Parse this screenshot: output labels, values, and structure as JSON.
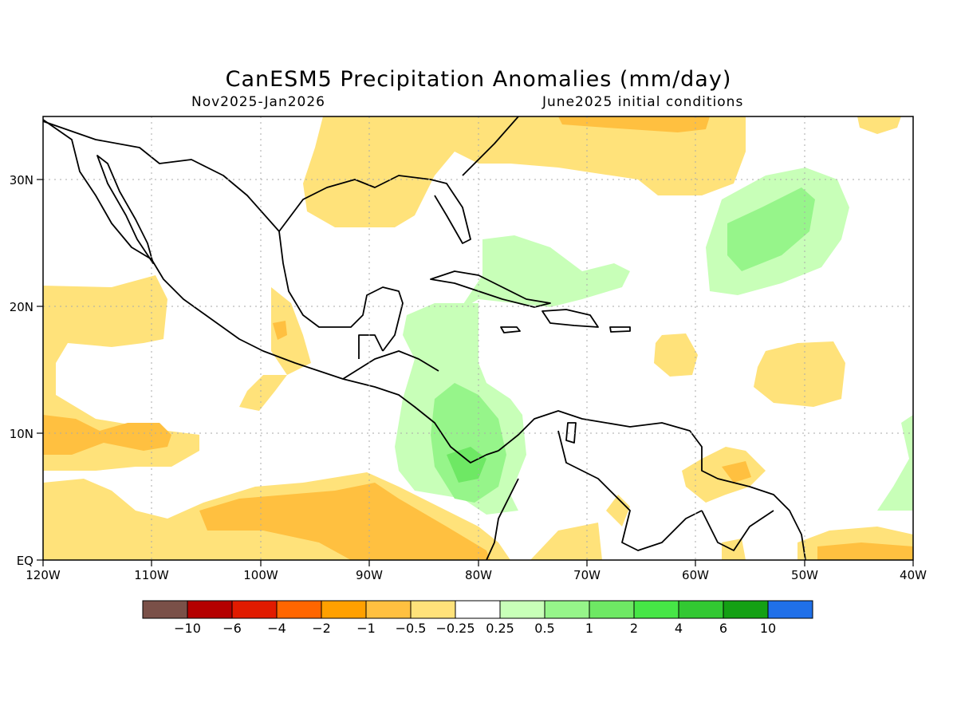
{
  "header": {
    "title": "CanESM5 Precipitation Anomalies (mm/day)",
    "period": "Nov2025-Jan2026",
    "init": "June2025 initial conditions"
  },
  "axes": {
    "x_ticks": [
      "120W",
      "110W",
      "100W",
      "90W",
      "80W",
      "70W",
      "60W",
      "50W",
      "40W"
    ],
    "y_ticks": [
      "EQ",
      "10N",
      "20N",
      "30N"
    ]
  },
  "colorbar": {
    "colors": [
      "#7a5048",
      "#b40000",
      "#e11b00",
      "#ff6600",
      "#ffa000",
      "#ffc040",
      "#ffe27a",
      "#ffffff",
      "#c8ffb8",
      "#96f58a",
      "#6ee864",
      "#46e646",
      "#32c832",
      "#14a014",
      "#2070e8"
    ],
    "labels": [
      "−10",
      "−6",
      "−4",
      "−2",
      "−1",
      "−0.5",
      "−0.25",
      "0.25",
      "0.5",
      "1",
      "2",
      "4",
      "6",
      "10"
    ]
  },
  "chart_data": {
    "type": "heatmap",
    "title": "CanESM5 Precipitation Anomalies (mm/day)",
    "lon_range": [
      -120,
      -40
    ],
    "lat_range": [
      0,
      35
    ],
    "levels": [
      -10,
      -6,
      -4,
      -2,
      -1,
      -0.5,
      -0.25,
      0.25,
      0.5,
      1,
      2,
      4,
      6,
      10
    ],
    "grid": true
  }
}
